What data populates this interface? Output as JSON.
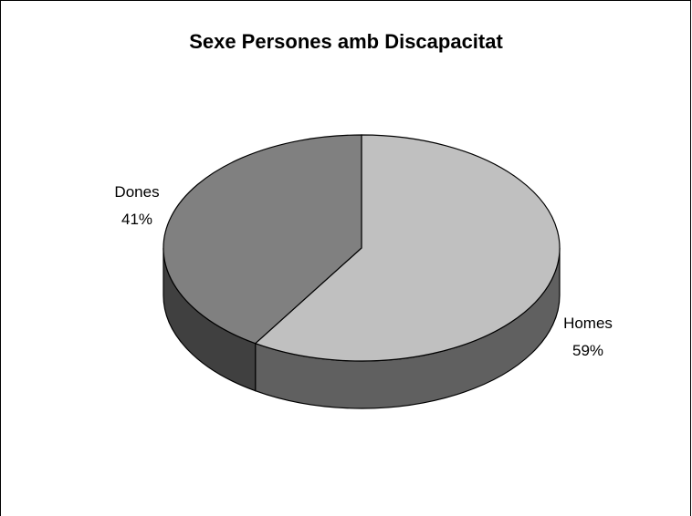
{
  "chart_data": {
    "type": "pie",
    "style": "3d",
    "title": "Sexe Persones amb Discapacitat",
    "slices": [
      {
        "label": "Homes",
        "value": 59,
        "pct_label": "59%",
        "color": "#c0c0c0",
        "side_color": "#606060"
      },
      {
        "label": "Dones",
        "value": 41,
        "pct_label": "41%",
        "color": "#808080",
        "side_color": "#404040"
      }
    ]
  }
}
